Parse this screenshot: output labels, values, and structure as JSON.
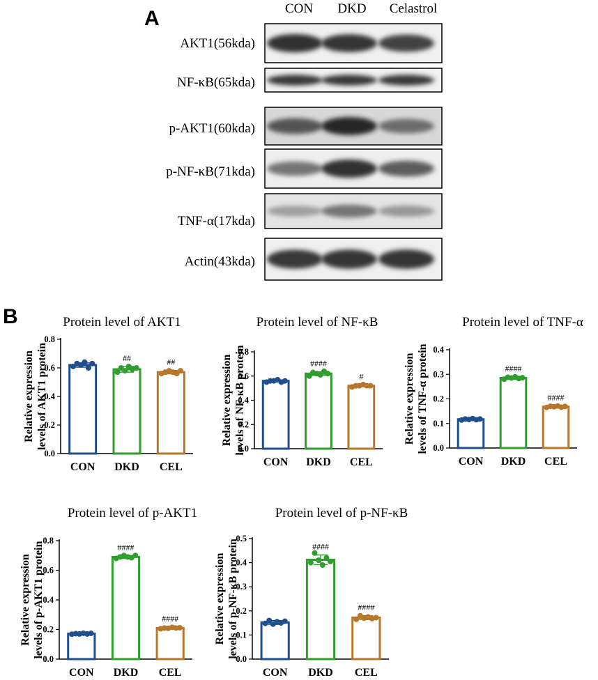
{
  "panel_a": {
    "letter": "A",
    "lanes": [
      "CON",
      "DKD",
      "Celastrol"
    ],
    "blots": [
      {
        "label": "AKT1(56kda)",
        "intensity": [
          0.95,
          0.92,
          0.85
        ],
        "bg": "#f0f0f0"
      },
      {
        "label": "NF-κB(65kda)",
        "intensity": [
          0.9,
          0.9,
          0.9
        ],
        "bg": "#f1f1f1"
      },
      {
        "label": "p-AKT1(60kda)",
        "intensity": [
          0.75,
          1.0,
          0.6
        ],
        "bg": "#d8d8d8"
      },
      {
        "label": "p-NF-κB(71kda)",
        "intensity": [
          0.55,
          0.95,
          0.7
        ],
        "bg": "#eeeeee"
      },
      {
        "label": "TNF-α(17kda)",
        "intensity": [
          0.3,
          0.55,
          0.35
        ],
        "bg": "#e4e4e4"
      },
      {
        "label": "Actin(43kda)",
        "intensity": [
          0.9,
          0.92,
          0.92
        ],
        "bg": "#f0f0f0"
      }
    ]
  },
  "panel_b": {
    "letter": "B"
  },
  "colors": {
    "CON": "#1f4e8c",
    "DKD": "#2e9e2e",
    "CEL": "#b5772a"
  },
  "chart_data": [
    {
      "type": "bar",
      "title": "Protein level of AKT1",
      "ylabel": [
        "Relative expression",
        "levels of AKT1 protein"
      ],
      "categories": [
        "CON",
        "DKD",
        "CEL"
      ],
      "values": [
        0.62,
        0.59,
        0.57
      ],
      "errors": [
        0.015,
        0.02,
        0.012
      ],
      "points": [
        [
          0.61,
          0.63,
          0.62,
          0.64,
          0.6,
          0.63
        ],
        [
          0.57,
          0.6,
          0.58,
          0.61,
          0.59,
          0.6
        ],
        [
          0.56,
          0.57,
          0.58,
          0.57,
          0.56,
          0.58
        ]
      ],
      "annotations": [
        "",
        "##",
        "##"
      ],
      "ylim": [
        0,
        0.8
      ],
      "yticks": [
        0,
        0.2,
        0.4,
        0.6,
        0.8
      ],
      "ytick_labels": [
        "0.0",
        "0.2",
        "0.4",
        "0.6",
        "0.8"
      ]
    },
    {
      "type": "bar",
      "title": "Protein level of NF-κB",
      "ylabel": [
        "Relative expression",
        "levels of NF-κB protein"
      ],
      "categories": [
        "CON",
        "DKD",
        "CEL"
      ],
      "values": [
        0.56,
        0.62,
        0.52
      ],
      "errors": [
        0.008,
        0.015,
        0.008
      ],
      "points": [
        [
          0.55,
          0.56,
          0.56,
          0.57,
          0.55,
          0.56
        ],
        [
          0.6,
          0.63,
          0.62,
          0.61,
          0.64,
          0.62
        ],
        [
          0.51,
          0.52,
          0.52,
          0.53,
          0.52,
          0.52
        ]
      ],
      "annotations": [
        "",
        "####",
        "#"
      ],
      "ylim": [
        0,
        0.8
      ],
      "yticks": [
        0,
        0.2,
        0.4,
        0.6,
        0.8
      ],
      "ytick_labels": [
        "0.0",
        "0.2",
        "0.4",
        "0.6",
        "0.8"
      ]
    },
    {
      "type": "bar",
      "title": "Protein level of TNF-α",
      "ylabel": [
        "Relative expression",
        "levels of TNF-α protein"
      ],
      "categories": [
        "CON",
        "DKD",
        "CEL"
      ],
      "values": [
        0.117,
        0.285,
        0.168
      ],
      "errors": [
        0.003,
        0.005,
        0.004
      ],
      "points": [
        [
          0.114,
          0.118,
          0.116,
          0.12,
          0.115,
          0.118
        ],
        [
          0.28,
          0.288,
          0.285,
          0.29,
          0.283,
          0.286
        ],
        [
          0.165,
          0.17,
          0.168,
          0.171,
          0.166,
          0.169
        ]
      ],
      "annotations": [
        "",
        "####",
        "####"
      ],
      "ylim": [
        0,
        0.4
      ],
      "yticks": [
        0,
        0.1,
        0.2,
        0.3,
        0.4
      ],
      "ytick_labels": [
        "0.0",
        "0.1",
        "0.2",
        "0.3",
        "0.4"
      ]
    },
    {
      "type": "bar",
      "title": "Protein level of p-AKT1",
      "ylabel": [
        "Relative expression",
        "levels of p-AKT1 protein"
      ],
      "categories": [
        "CON",
        "DKD",
        "CEL"
      ],
      "values": [
        0.172,
        0.69,
        0.21
      ],
      "errors": [
        0.006,
        0.01,
        0.006
      ],
      "points": [
        [
          0.168,
          0.172,
          0.17,
          0.175,
          0.17,
          0.174
        ],
        [
          0.68,
          0.69,
          0.7,
          0.69,
          0.685,
          0.7
        ],
        [
          0.205,
          0.21,
          0.208,
          0.215,
          0.21,
          0.212
        ]
      ],
      "annotations": [
        "",
        "####",
        "####"
      ],
      "ylim": [
        0,
        0.8
      ],
      "yticks": [
        0,
        0.2,
        0.4,
        0.6,
        0.8
      ],
      "ytick_labels": [
        "0.0",
        "0.2",
        "0.4",
        "0.6",
        "0.8"
      ]
    },
    {
      "type": "bar",
      "title": "Protein level of p-NF-κB",
      "ylabel": [
        "Relative expression",
        "levels of p-NF-κB protein"
      ],
      "categories": [
        "CON",
        "DKD",
        "CEL"
      ],
      "values": [
        0.152,
        0.412,
        0.172
      ],
      "errors": [
        0.008,
        0.02,
        0.008
      ],
      "points": [
        [
          0.148,
          0.16,
          0.145,
          0.155,
          0.15,
          0.157
        ],
        [
          0.4,
          0.44,
          0.41,
          0.39,
          0.42,
          0.405
        ],
        [
          0.165,
          0.18,
          0.17,
          0.175,
          0.168,
          0.172
        ]
      ],
      "annotations": [
        "",
        "####",
        "####"
      ],
      "ylim": [
        0,
        0.5
      ],
      "yticks": [
        0,
        0.1,
        0.2,
        0.3,
        0.4,
        0.5
      ],
      "ytick_labels": [
        "0.0",
        "0.1",
        "0.2",
        "0.3",
        "0.4",
        "0.5"
      ]
    }
  ]
}
